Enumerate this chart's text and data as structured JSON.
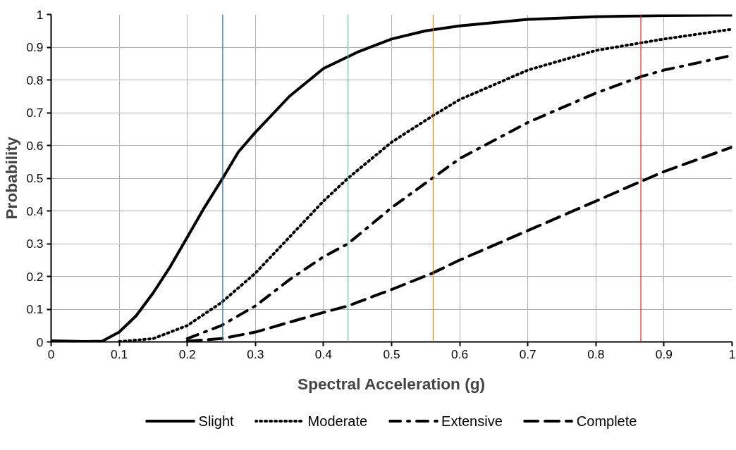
{
  "chart_data": {
    "type": "line",
    "xlabel": "Spectral Acceleration (g)",
    "ylabel": "Probability",
    "xlim": [
      0,
      1
    ],
    "ylim": [
      0,
      1
    ],
    "xticks": [
      0,
      0.1,
      0.2,
      0.3,
      0.4,
      0.5,
      0.6,
      0.7,
      0.8,
      0.9,
      1
    ],
    "yticks": [
      0,
      0.1,
      0.2,
      0.3,
      0.4,
      0.5,
      0.6,
      0.7,
      0.8,
      0.9,
      1
    ],
    "grid": true,
    "legend": "bottom",
    "marker": "none",
    "series": [
      {
        "name": "Slight",
        "color": "#000000",
        "line_style": "solid",
        "x": [
          0,
          0.05,
          0.075,
          0.1,
          0.125,
          0.15,
          0.175,
          0.2,
          0.225,
          0.252,
          0.275,
          0.3,
          0.35,
          0.4,
          0.45,
          0.5,
          0.55,
          0.6,
          0.7,
          0.8,
          0.9,
          1
        ],
        "values": [
          0.003,
          0.001,
          0.002,
          0.03,
          0.08,
          0.15,
          0.23,
          0.32,
          0.41,
          0.5,
          0.58,
          0.64,
          0.75,
          0.835,
          0.885,
          0.925,
          0.95,
          0.965,
          0.985,
          0.993,
          0.997,
          0.998
        ]
      },
      {
        "name": "Moderate",
        "color": "#000000",
        "line_style": "dotted",
        "x": [
          0.1,
          0.15,
          0.2,
          0.25,
          0.3,
          0.35,
          0.4,
          0.436,
          0.5,
          0.56,
          0.6,
          0.7,
          0.8,
          0.9,
          1
        ],
        "values": [
          0.001,
          0.01,
          0.05,
          0.12,
          0.21,
          0.32,
          0.43,
          0.5,
          0.61,
          0.69,
          0.74,
          0.83,
          0.89,
          0.925,
          0.955
        ]
      },
      {
        "name": "Extensive",
        "color": "#000000",
        "line_style": "dashdot",
        "x": [
          0.2,
          0.25,
          0.3,
          0.35,
          0.4,
          0.436,
          0.5,
          0.56,
          0.6,
          0.7,
          0.8,
          0.866,
          0.9,
          1
        ],
        "values": [
          0.01,
          0.05,
          0.11,
          0.19,
          0.26,
          0.3,
          0.41,
          0.5,
          0.56,
          0.67,
          0.76,
          0.81,
          0.83,
          0.875
        ]
      },
      {
        "name": "Complete",
        "color": "#000000",
        "line_style": "dashed",
        "x": [
          0.2,
          0.25,
          0.3,
          0.35,
          0.4,
          0.436,
          0.5,
          0.56,
          0.6,
          0.7,
          0.8,
          0.866,
          0.9,
          1
        ],
        "values": [
          0.002,
          0.01,
          0.03,
          0.06,
          0.09,
          0.11,
          0.16,
          0.21,
          0.25,
          0.34,
          0.43,
          0.49,
          0.52,
          0.595
        ]
      }
    ],
    "ref_lines": [
      {
        "axis": "x",
        "value": 0.252,
        "color": "#1f6fb5"
      },
      {
        "axis": "x",
        "value": 0.436,
        "color": "#5fcf8f"
      },
      {
        "axis": "x",
        "value": 0.561,
        "color": "#f07f10"
      },
      {
        "axis": "x",
        "value": 0.866,
        "color": "#e02020"
      }
    ]
  }
}
